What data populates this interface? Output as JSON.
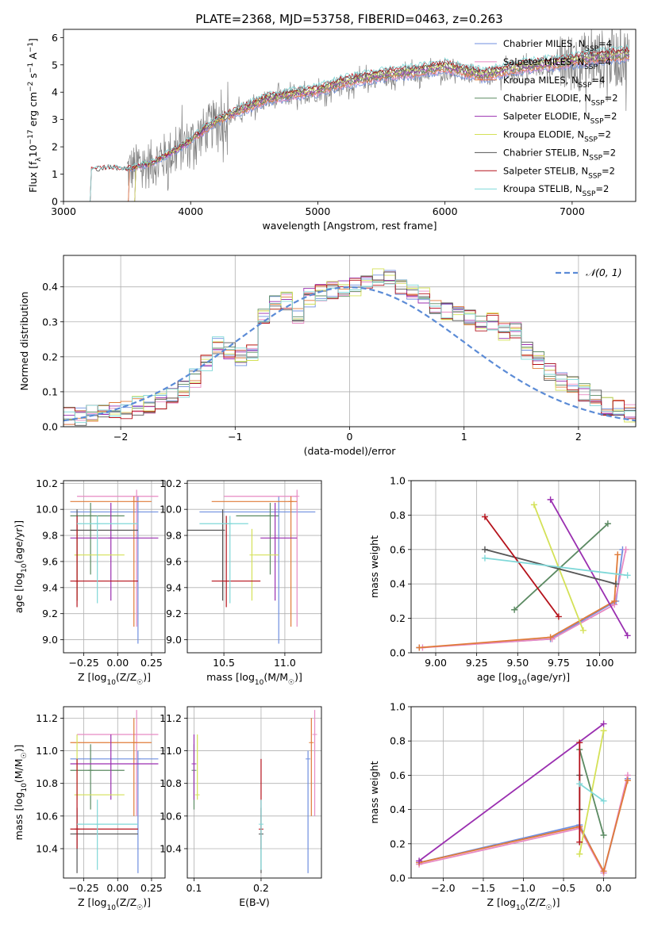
{
  "figure": {
    "title": "PLATE=2368, MJD=53758, FIBERID=0463, z=0.263"
  },
  "chart_data": [
    {
      "id": "spectrum",
      "type": "line",
      "xlabel": "wavelength [Angstrom, rest frame]",
      "ylabel": "Flux [f_λ 10^-17 erg cm^-2 s^-1 A^-1]",
      "xlim": [
        3000,
        7500
      ],
      "ylim": [
        0,
        6.3
      ],
      "xticks": [
        3000,
        4000,
        5000,
        6000,
        7000
      ],
      "yticks": [
        0,
        1,
        2,
        3,
        4,
        5,
        6
      ],
      "grid": false,
      "legend_position": "upper right",
      "data_color": "#808080",
      "legend": [
        {
          "text": "Chabrier MILES, N_SSP=4",
          "color": "#6f8fdf"
        },
        {
          "text": "Salpeter MILES, N_SSP=4",
          "color": "#e78ac3"
        },
        {
          "text": "Kroupa MILES, N_SSP=4",
          "color": "#e07b39"
        },
        {
          "text": "Chabrier ELODIE, N_SSP=2",
          "color": "#5b8a62"
        },
        {
          "text": "Salpeter ELODIE, N_SSP=2",
          "color": "#9a2fb0"
        },
        {
          "text": "Kroupa ELODIE, N_SSP=2",
          "color": "#d4e157"
        },
        {
          "text": "Chabrier STELIB, N_SSP=2",
          "color": "#555555"
        },
        {
          "text": "Salpeter STELIB, N_SSP=2",
          "color": "#b5121b"
        },
        {
          "text": "Kroupa STELIB, N_SSP=2",
          "color": "#7fd8d8"
        }
      ],
      "continuum": [
        [
          3200,
          1.1
        ],
        [
          3350,
          1.2
        ],
        [
          3500,
          1.15
        ],
        [
          3700,
          1.4
        ],
        [
          3900,
          1.9
        ],
        [
          4000,
          2.2
        ],
        [
          4200,
          2.9
        ],
        [
          4400,
          3.3
        ],
        [
          4600,
          3.7
        ],
        [
          4800,
          3.85
        ],
        [
          5000,
          4.0
        ],
        [
          5200,
          4.3
        ],
        [
          5500,
          4.55
        ],
        [
          5800,
          4.7
        ],
        [
          6000,
          4.85
        ],
        [
          6300,
          4.55
        ],
        [
          6600,
          4.85
        ],
        [
          6900,
          5.0
        ],
        [
          7200,
          5.2
        ],
        [
          7450,
          5.3
        ]
      ]
    },
    {
      "id": "residuals",
      "type": "bar",
      "xlabel": "(data-model)/error",
      "ylabel": "Normed distribution",
      "xlim": [
        -2.5,
        2.5
      ],
      "ylim": [
        0,
        0.49
      ],
      "xticks": [
        -2,
        -1,
        0,
        1,
        2
      ],
      "yticks": [
        0.0,
        0.1,
        0.2,
        0.3,
        0.4
      ],
      "grid": true,
      "legend_position": "upper right",
      "legend": [
        {
          "text": "𝒩(0, 1)",
          "color": "#5b8bd6"
        }
      ],
      "bin_edges_start": -2.5,
      "bin_width": 0.1,
      "base_heights": [
        0.03,
        0.03,
        0.035,
        0.04,
        0.045,
        0.05,
        0.06,
        0.065,
        0.075,
        0.085,
        0.11,
        0.14,
        0.18,
        0.23,
        0.22,
        0.2,
        0.21,
        0.31,
        0.36,
        0.36,
        0.32,
        0.37,
        0.38,
        0.39,
        0.4,
        0.4,
        0.41,
        0.43,
        0.42,
        0.4,
        0.38,
        0.37,
        0.35,
        0.33,
        0.32,
        0.31,
        0.3,
        0.3,
        0.27,
        0.28,
        0.22,
        0.19,
        0.16,
        0.13,
        0.12,
        0.1,
        0.08,
        0.06,
        0.05,
        0.04
      ]
    },
    {
      "id": "age_vs_Z",
      "type": "scatter",
      "xlabel": "Z [log10(Z/Z☉)]",
      "ylabel": "age  [log10(age/yr)]",
      "xlim": [
        -0.4,
        0.35
      ],
      "ylim": [
        8.9,
        10.22
      ],
      "xticks": [
        -0.25,
        0.0,
        0.25
      ],
      "yticks": [
        9.0,
        9.2,
        9.4,
        9.6,
        9.8,
        10.0,
        10.2
      ],
      "xticklabels": [
        "−0.25",
        "0.00",
        "0.25"
      ],
      "grid": true
    },
    {
      "id": "age_vs_mass",
      "type": "scatter",
      "xlabel": "mass [log10(M/M☉)]",
      "xlim": [
        10.2,
        11.3
      ],
      "ylim": [
        8.9,
        10.22
      ],
      "xticks": [
        10.5,
        11.0
      ],
      "yticks": [
        9.0,
        9.2,
        9.4,
        9.6,
        9.8,
        10.0,
        10.2
      ],
      "grid": true
    },
    {
      "id": "weight_vs_age",
      "type": "line",
      "xlabel": "age  [log10(age/yr)]",
      "ylabel": "mass weight",
      "xlim": [
        8.85,
        10.22
      ],
      "ylim": [
        0.0,
        1.0
      ],
      "xticks": [
        9.0,
        9.25,
        9.5,
        9.75,
        10.0
      ],
      "yticks": [
        0.0,
        0.2,
        0.4,
        0.6,
        0.8,
        1.0
      ],
      "grid": true
    },
    {
      "id": "mass_vs_Z",
      "type": "scatter",
      "xlabel": "Z [log10(Z/Z☉)]",
      "ylabel": "mass [log10(M/M☉)]",
      "xlim": [
        -0.4,
        0.35
      ],
      "ylim": [
        10.22,
        11.27
      ],
      "xticks": [
        -0.25,
        0.0,
        0.25
      ],
      "yticks": [
        10.4,
        10.6,
        10.8,
        11.0,
        11.2
      ],
      "xticklabels": [
        "−0.25",
        "0.00",
        "0.25"
      ],
      "grid": true
    },
    {
      "id": "mass_vs_ebv",
      "type": "scatter",
      "xlabel": "E(B-V)",
      "xlim": [
        0.09,
        0.29
      ],
      "ylim": [
        10.22,
        11.27
      ],
      "xticks": [
        0.1,
        0.2
      ],
      "yticks": [
        10.4,
        10.6,
        10.8,
        11.0,
        11.2
      ],
      "grid": true
    },
    {
      "id": "weight_vs_Z",
      "type": "line",
      "xlabel": "Z [log10(Z/Z☉)]",
      "ylabel": "mass weight",
      "xlim": [
        -2.4,
        0.4
      ],
      "ylim": [
        0.0,
        1.0
      ],
      "xticks": [
        -2.0,
        -1.5,
        -1.0,
        -0.5,
        0.0
      ],
      "yticks": [
        0.0,
        0.2,
        0.4,
        0.6,
        0.8,
        1.0
      ],
      "grid": true
    }
  ],
  "models": [
    {
      "name": "Chabrier MILES",
      "color": "#6f8fdf",
      "Z": 0.15,
      "age": 9.98,
      "mass": 10.95,
      "ebv": 0.27,
      "Zerr": [
        -0.35,
        0.3
      ],
      "ageerr": [
        8.97,
        10.1
      ],
      "masserr": [
        10.25,
        11.0
      ],
      "masserrx": [
        10.3,
        11.25
      ],
      "weights_age": [
        [
          8.9,
          0.03
        ],
        [
          9.7,
          0.08
        ],
        [
          10.1,
          0.3
        ],
        [
          10.14,
          0.6
        ]
      ],
      "weights_Z": [
        [
          -2.3,
          0.09
        ],
        [
          -0.3,
          0.31
        ],
        [
          0.0,
          0.03
        ],
        [
          0.3,
          0.58
        ]
      ]
    },
    {
      "name": "Salpeter MILES",
      "color": "#e78ac3",
      "Z": 0.14,
      "age": 10.1,
      "mass": 11.1,
      "ebv": 0.28,
      "Zerr": [
        -0.3,
        0.3
      ],
      "ageerr": [
        9.1,
        10.15
      ],
      "masserr": [
        10.6,
        11.25
      ],
      "masserrx": [
        10.5,
        11.1
      ],
      "weights_age": [
        [
          8.92,
          0.03
        ],
        [
          9.71,
          0.08
        ],
        [
          10.09,
          0.28
        ],
        [
          10.16,
          0.6
        ]
      ],
      "weights_Z": [
        [
          -2.3,
          0.08
        ],
        [
          -0.3,
          0.29
        ],
        [
          0.0,
          0.03
        ],
        [
          0.3,
          0.6
        ]
      ]
    },
    {
      "name": "Kroupa MILES",
      "color": "#e07b39",
      "Z": 0.12,
      "age": 10.06,
      "mass": 11.05,
      "ebv": 0.275,
      "Zerr": [
        -0.35,
        0.25
      ],
      "ageerr": [
        9.1,
        10.1
      ],
      "masserr": [
        10.6,
        11.2
      ],
      "masserrx": [
        10.4,
        11.1
      ],
      "weights_age": [
        [
          8.9,
          0.03
        ],
        [
          9.7,
          0.09
        ],
        [
          10.09,
          0.3
        ],
        [
          10.11,
          0.57
        ]
      ],
      "weights_Z": [
        [
          -2.3,
          0.09
        ],
        [
          -0.3,
          0.3
        ],
        [
          0.0,
          0.04
        ],
        [
          0.3,
          0.57
        ]
      ]
    },
    {
      "name": "Chabrier ELODIE",
      "color": "#5b8a62",
      "Z": -0.2,
      "age": 9.95,
      "mass": 10.88,
      "ebv": 0.1,
      "Zerr": [
        -0.35,
        0.05
      ],
      "ageerr": [
        9.5,
        10.05
      ],
      "masserr": [
        10.64,
        11.04
      ],
      "masserrx": [
        10.6,
        10.95
      ],
      "weights_age": [
        [
          9.48,
          0.25
        ],
        [
          10.05,
          0.75
        ]
      ],
      "weights_Z": [
        [
          -0.3,
          0.75
        ],
        [
          0.0,
          0.25
        ]
      ]
    },
    {
      "name": "Salpeter ELODIE",
      "color": "#9a2fb0",
      "Z": -0.05,
      "age": 9.78,
      "mass": 10.92,
      "ebv": 0.1,
      "Zerr": [
        -0.35,
        0.3
      ],
      "ageerr": [
        9.3,
        10.05
      ],
      "masserr": [
        10.7,
        11.1
      ],
      "masserrx": [
        10.8,
        11.1
      ],
      "weights_age": [
        [
          9.7,
          0.89
        ],
        [
          10.17,
          0.1
        ]
      ],
      "weights_Z": [
        [
          -2.3,
          0.1
        ],
        [
          0.0,
          0.9
        ]
      ]
    },
    {
      "name": "Kroupa ELODIE",
      "color": "#d4e157",
      "Z": -0.3,
      "age": 9.65,
      "mass": 10.73,
      "ebv": 0.105,
      "Zerr": [
        -0.32,
        0.05
      ],
      "ageerr": [
        9.3,
        9.85
      ],
      "masserr": [
        10.7,
        11.1
      ],
      "masserrx": [
        10.75,
        10.95
      ],
      "weights_age": [
        [
          9.6,
          0.86
        ],
        [
          9.9,
          0.13
        ]
      ],
      "weights_Z": [
        [
          -0.3,
          0.14
        ],
        [
          0.0,
          0.86
        ]
      ]
    },
    {
      "name": "Chabrier STELIB",
      "color": "#555555",
      "Z": -0.3,
      "age": 9.84,
      "mass": 10.49,
      "ebv": 0.2,
      "Zerr": [
        -0.35,
        0.15
      ],
      "ageerr": [
        9.3,
        10.0
      ],
      "masserr": [
        10.25,
        10.65
      ],
      "masserrx": [
        10.2,
        10.5
      ],
      "weights_age": [
        [
          9.3,
          0.6
        ],
        [
          10.1,
          0.4
        ]
      ],
      "weights_Z": [
        [
          -0.3,
          0.6
        ],
        [
          -0.3,
          0.4
        ]
      ]
    },
    {
      "name": "Salpeter STELIB",
      "color": "#b5121b",
      "Z": -0.3,
      "age": 9.45,
      "mass": 10.52,
      "ebv": 0.2,
      "Zerr": [
        -0.35,
        0.15
      ],
      "ageerr": [
        9.25,
        9.95
      ],
      "masserr": [
        10.4,
        10.95
      ],
      "masserrx": [
        10.4,
        10.8
      ],
      "weights_age": [
        [
          9.3,
          0.79
        ],
        [
          9.75,
          0.21
        ]
      ],
      "weights_Z": [
        [
          -0.3,
          0.79
        ],
        [
          -0.3,
          0.21
        ]
      ]
    },
    {
      "name": "Kroupa STELIB",
      "color": "#7fd8d8",
      "Z": -0.15,
      "age": 9.89,
      "mass": 10.55,
      "ebv": 0.2,
      "Zerr": [
        -0.3,
        0.15
      ],
      "ageerr": [
        9.28,
        9.95
      ],
      "masserr": [
        10.27,
        10.7
      ],
      "masserrx": [
        10.3,
        10.7
      ],
      "weights_age": [
        [
          9.3,
          0.55
        ],
        [
          10.17,
          0.45
        ]
      ],
      "weights_Z": [
        [
          -0.3,
          0.55
        ],
        [
          0.0,
          0.45
        ]
      ]
    }
  ]
}
